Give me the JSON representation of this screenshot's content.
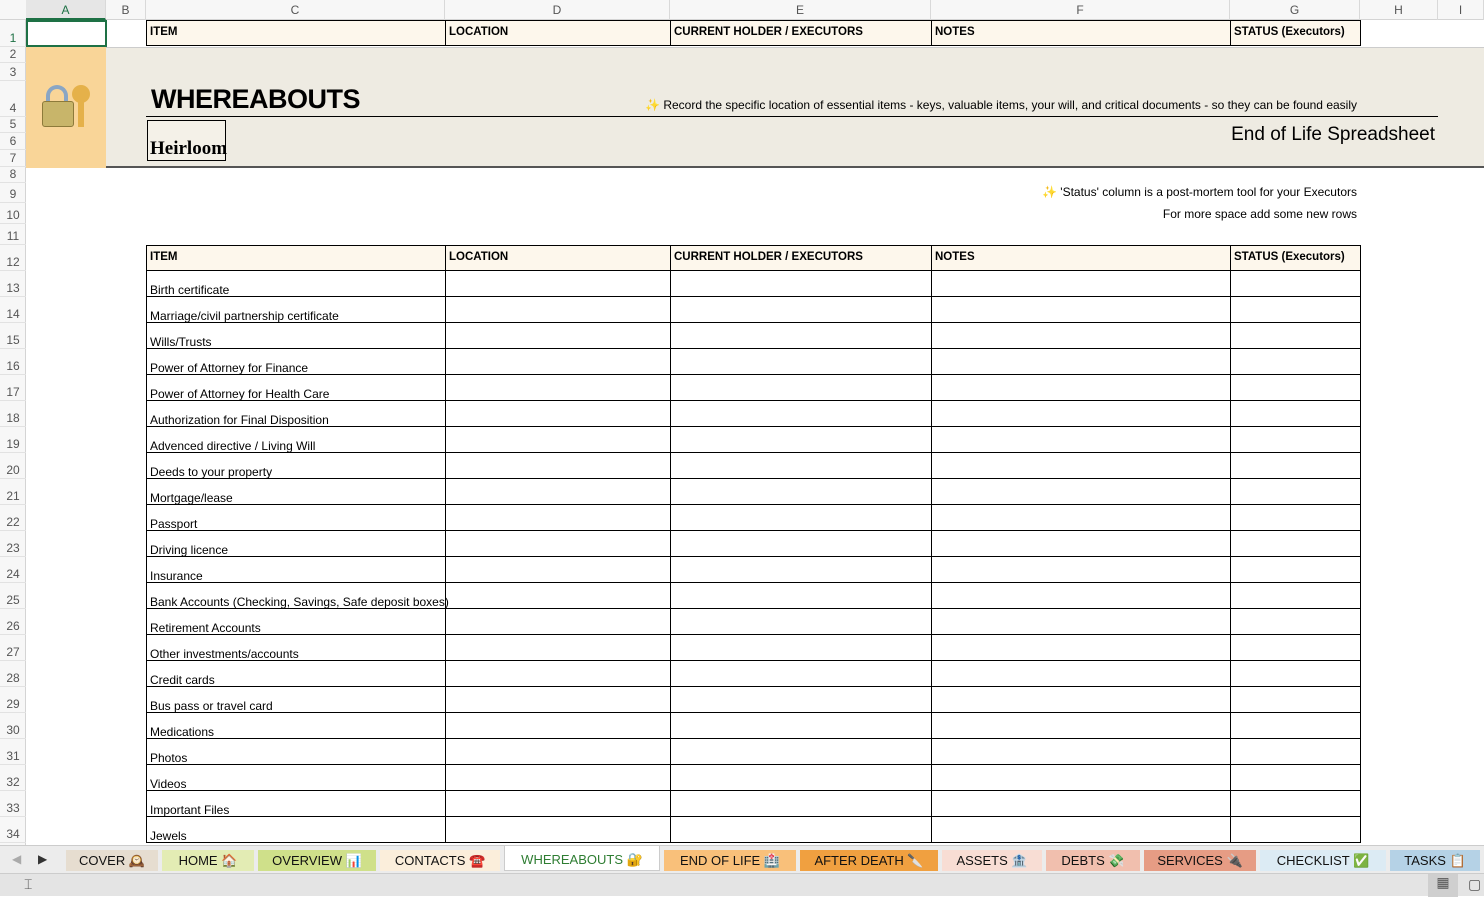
{
  "columns": [
    "A",
    "B",
    "C",
    "D",
    "E",
    "F",
    "G",
    "H",
    "I"
  ],
  "selected_cell": "A1",
  "headers": [
    "ITEM",
    "LOCATION",
    "CURRENT HOLDER / EXECUTORS",
    "NOTES",
    "STATUS (Executors)"
  ],
  "banner": {
    "title": "WHEREABOUTS",
    "tagline": "✨ Record the specific location of essential items - keys, valuable items,  your will, and critical documents - so they can be found easily",
    "subtitle": "End of Life Spreadsheet",
    "logo_text": "Heirloom",
    "icon": "lock-with-key-icon"
  },
  "notes": [
    "✨ 'Status' column is a post-mortem tool for your Executors",
    "For more space add some new rows"
  ],
  "items": [
    "Birth certificate",
    "Marriage/civil partnership certificate",
    "Wills/Trusts",
    "Power of Attorney for Finance",
    "Power of Attorney for Health Care",
    "Authorization for Final Disposition",
    "Advenced directive / Living Will",
    "Deeds to your property",
    "Mortgage/lease",
    "Passport",
    "Driving licence",
    "Insurance",
    "Bank Accounts (Checking, Savings, Safe deposit boxes)",
    "Retirement Accounts",
    "Other investments/accounts",
    "Credit cards",
    "Bus pass or travel card",
    "Medications",
    "Photos",
    "Videos",
    "Important Files",
    "Jewels"
  ],
  "tabs": [
    {
      "label": "COVER 🕰️",
      "color": "#e6ddd0"
    },
    {
      "label": "HOME 🏠",
      "color": "#e3ecb4"
    },
    {
      "label": "OVERVIEW 📊",
      "color": "#cfe08a"
    },
    {
      "label": "CONTACTS ☎️",
      "color": "#fbeedb"
    },
    {
      "label": "WHEREABOUTS 🔐",
      "color": "#fff",
      "active": true
    },
    {
      "label": "END OF LIFE 🏥",
      "color": "#f9c07a"
    },
    {
      "label": "AFTER DEATH 🔪",
      "color": "#f0a040"
    },
    {
      "label": "ASSETS 🏦",
      "color": "#f8ddd4"
    },
    {
      "label": "DEBTS 💸",
      "color": "#f1bfae"
    },
    {
      "label": "SERVICES 🔌",
      "color": "#e69c84"
    },
    {
      "label": "CHECKLIST ✅",
      "color": "#dcebf4"
    },
    {
      "label": "TASKS 📋",
      "color": "#b5d2e6"
    }
  ]
}
